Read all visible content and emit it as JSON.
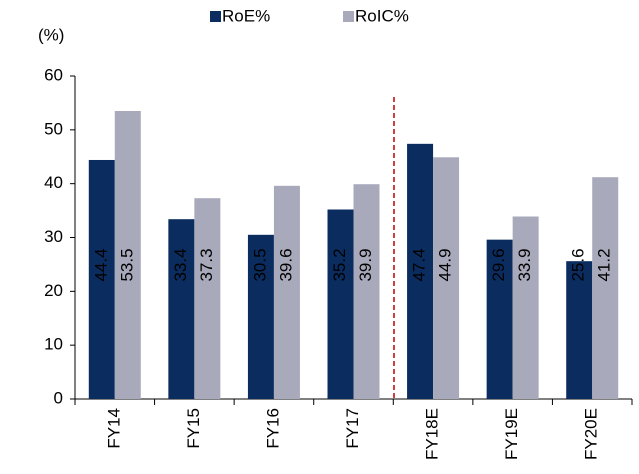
{
  "chart_data": {
    "type": "bar",
    "y_axis_label": "(%)",
    "categories": [
      "FY14",
      "FY15",
      "FY16",
      "FY17",
      "FY18E",
      "FY19E",
      "FY20E"
    ],
    "series": [
      {
        "name": "RoE%",
        "color": "#0b2c5f",
        "values": [
          44.4,
          33.4,
          30.5,
          35.2,
          47.4,
          29.6,
          25.6
        ]
      },
      {
        "name": "RoIC%",
        "color": "#a8a9ba",
        "values": [
          53.5,
          37.3,
          39.6,
          39.9,
          44.9,
          33.9,
          41.2
        ]
      }
    ],
    "ylim": [
      0,
      60
    ],
    "yticks": [
      0,
      10,
      20,
      30,
      40,
      50,
      60
    ],
    "grid": false
  }
}
